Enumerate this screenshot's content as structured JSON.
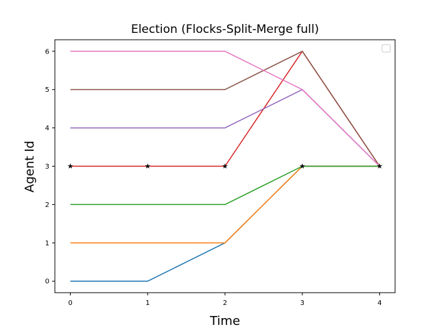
{
  "chart_data": {
    "type": "line",
    "title": "Election (Flocks-Split-Merge full)",
    "xlabel": "Time",
    "ylabel": "Agent Id",
    "xlim": [
      -0.2,
      4.2
    ],
    "ylim": [
      -0.3,
      6.3
    ],
    "xticks": [
      0,
      1,
      2,
      3,
      4
    ],
    "yticks": [
      0,
      1,
      2,
      3,
      4,
      5,
      6
    ],
    "grid": false,
    "legend": "top-right (empty)",
    "x": [
      0,
      1,
      2,
      3,
      4
    ],
    "series": [
      {
        "color": "#1f77b4",
        "values": [
          0,
          0,
          1,
          3,
          3
        ]
      },
      {
        "color": "#ff7f0e",
        "values": [
          1,
          1,
          1,
          3,
          3
        ]
      },
      {
        "color": "#2ca02c",
        "values": [
          2,
          2,
          2,
          3,
          3
        ]
      },
      {
        "color": "#d62728",
        "values": [
          3,
          3,
          3,
          6,
          3
        ]
      },
      {
        "color": "#9467bd",
        "values": [
          4,
          4,
          4,
          5,
          3
        ]
      },
      {
        "color": "#8c564b",
        "values": [
          5,
          5,
          5,
          6,
          3
        ]
      },
      {
        "color": "#e377c2",
        "values": [
          6,
          6,
          6,
          5,
          3
        ]
      }
    ],
    "markers": {
      "symbol": "star",
      "color": "#000000",
      "points": [
        [
          0,
          3
        ],
        [
          1,
          3
        ],
        [
          2,
          3
        ],
        [
          3,
          3
        ],
        [
          4,
          3
        ]
      ]
    }
  }
}
